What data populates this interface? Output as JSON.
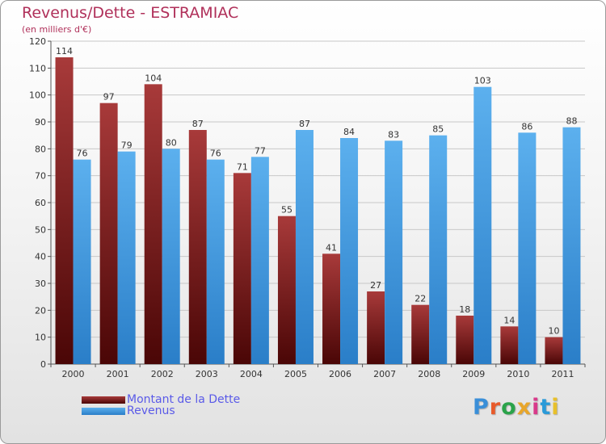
{
  "header": {
    "title": "Revenus/Dette - ESTRAMIAC",
    "subtitle": "(en milliers d'€)"
  },
  "legend": [
    {
      "label": "Montant de la Dette",
      "color": "#7a1a1a"
    },
    {
      "label": "Revenus",
      "color": "#4aa3e8"
    }
  ],
  "logo": {
    "text": "Proxiti",
    "letter_colors": [
      "#3a8fd8",
      "#e85a2a",
      "#2aa34a",
      "#e8a62a",
      "#d83a8a",
      "#2a9ad8",
      "#e8c02a"
    ]
  },
  "chart_data": {
    "type": "bar",
    "title": "Revenus/Dette - ESTRAMIAC",
    "subtitle": "(en milliers d'€)",
    "categories": [
      "2000",
      "2001",
      "2002",
      "2003",
      "2004",
      "2005",
      "2006",
      "2007",
      "2008",
      "2009",
      "2010",
      "2011"
    ],
    "series": [
      {
        "name": "Montant de la Dette",
        "color": "#7a1a1a",
        "values": [
          114,
          97,
          104,
          87,
          71,
          55,
          41,
          27,
          22,
          18,
          14,
          10
        ]
      },
      {
        "name": "Revenus",
        "color": "#4aa3e8",
        "values": [
          76,
          79,
          80,
          76,
          77,
          87,
          84,
          83,
          85,
          103,
          86,
          88
        ]
      }
    ],
    "ylim": [
      0,
      120
    ],
    "yticks": [
      0,
      10,
      20,
      30,
      40,
      50,
      60,
      70,
      80,
      90,
      100,
      110,
      120
    ],
    "grid": true,
    "legend_position": "bottom-left"
  }
}
